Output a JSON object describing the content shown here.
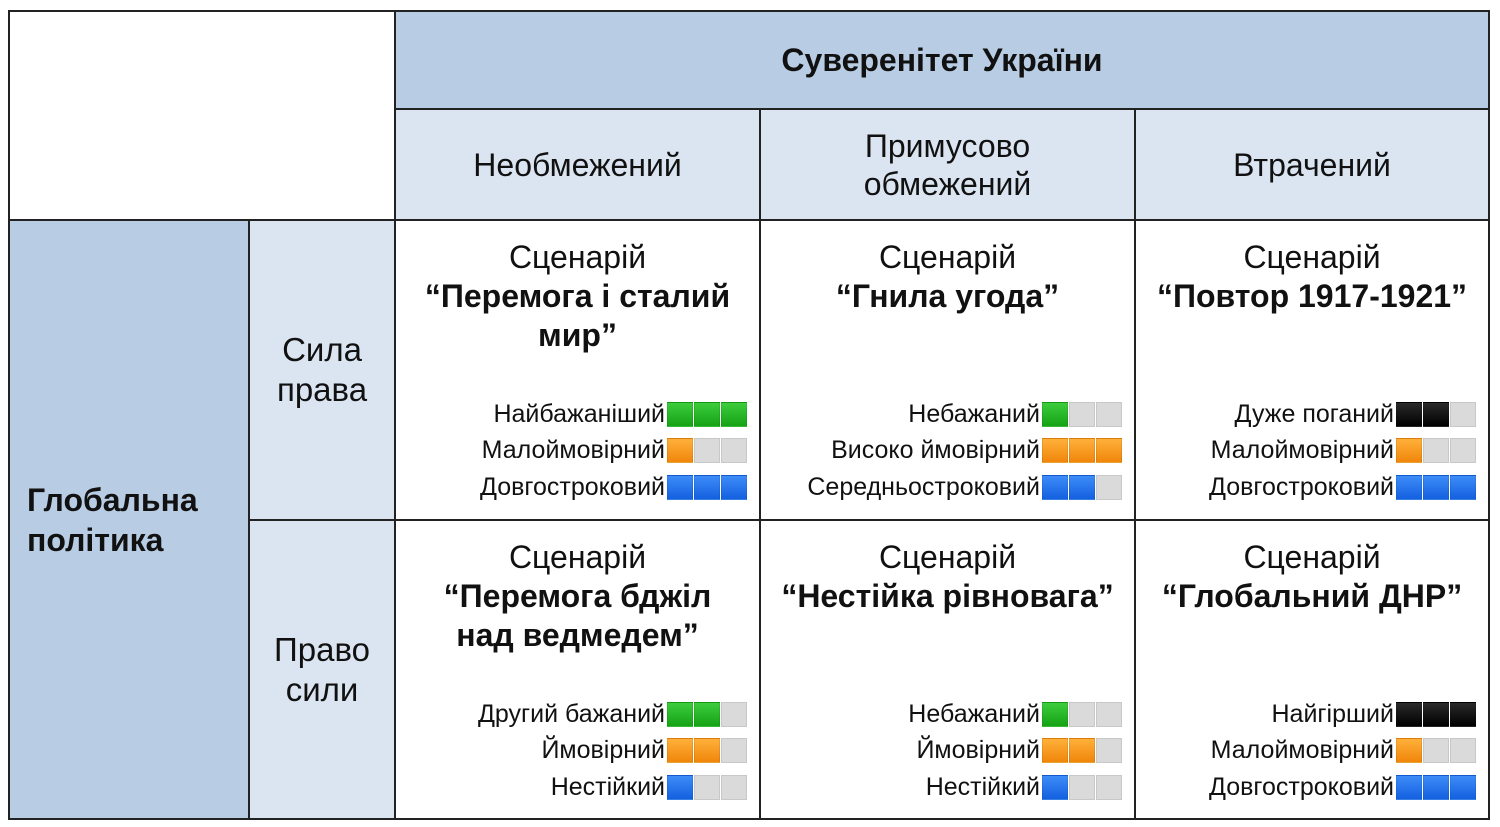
{
  "header": {
    "title": "Суверенітет України",
    "columns": [
      "Необмежений",
      "Примусово обмежений",
      "Втрачений"
    ]
  },
  "row_dimension": {
    "label": "Глобальна політика",
    "rows": [
      "Сила права",
      "Право сили"
    ]
  },
  "colors": {
    "green": "#1fb51f",
    "orange": "#f7941d",
    "blue": "#1a6ef0",
    "black": "#111111",
    "empty": "#dadada",
    "header_dark": "#b8cce4",
    "header_light": "#dbe5f1"
  },
  "scenarios": [
    {
      "label": "Сценарій",
      "name": "“Перемога і сталий мир”",
      "ratings": [
        {
          "text": "Найбажаніший",
          "color": "green",
          "level": 3
        },
        {
          "text": "Малоймовірний",
          "color": "orange",
          "level": 1
        },
        {
          "text": "Довгостроковий",
          "color": "blue",
          "level": 3
        }
      ]
    },
    {
      "label": "Сценарій",
      "name": "“Гнила угода”",
      "ratings": [
        {
          "text": "Небажаний",
          "color": "green",
          "level": 1
        },
        {
          "text": "Високо ймовірний",
          "color": "orange",
          "level": 3
        },
        {
          "text": "Середньостроковий",
          "color": "blue",
          "level": 2
        }
      ]
    },
    {
      "label": "Сценарій",
      "name": "“Повтор 1917-1921”",
      "ratings": [
        {
          "text": "Дуже поганий",
          "color": "black",
          "level": 2
        },
        {
          "text": "Малоймовірний",
          "color": "orange",
          "level": 1
        },
        {
          "text": "Довгостроковий",
          "color": "blue",
          "level": 3
        }
      ]
    },
    {
      "label": "Сценарій",
      "name": "“Перемога бджіл над ведмедем”",
      "ratings": [
        {
          "text": "Другий бажаний",
          "color": "green",
          "level": 2
        },
        {
          "text": "Ймовірний",
          "color": "orange",
          "level": 2
        },
        {
          "text": "Нестійкий",
          "color": "blue",
          "level": 1
        }
      ]
    },
    {
      "label": "Сценарій",
      "name": "“Нестійка рівновага”",
      "ratings": [
        {
          "text": "Небажаний",
          "color": "green",
          "level": 1
        },
        {
          "text": "Ймовірний",
          "color": "orange",
          "level": 2
        },
        {
          "text": "Нестійкий",
          "color": "blue",
          "level": 1
        }
      ]
    },
    {
      "label": "Сценарій",
      "name": "“Глобальний ДНР”",
      "ratings": [
        {
          "text": "Найгірший",
          "color": "black",
          "level": 3
        },
        {
          "text": "Малоймовірний",
          "color": "orange",
          "level": 1
        },
        {
          "text": "Довгостроковий",
          "color": "blue",
          "level": 3
        }
      ]
    }
  ]
}
